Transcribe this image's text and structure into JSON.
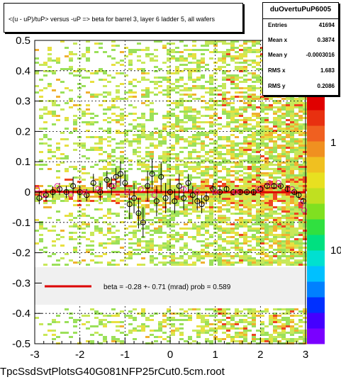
{
  "title": "<(u - uP)/tuP> versus  -uP => beta for barrel 3, layer 6 ladder 5, all wafers",
  "footer": "TpcSsdSvtPlotsG40G081NFP25rCut0.5cm.root",
  "stats": {
    "name": "duOvertuPuP6005",
    "rows": [
      {
        "label": "Entries",
        "value": "41694"
      },
      {
        "label": "Mean x",
        "value": "0.3874"
      },
      {
        "label": "Mean y",
        "value": "-0.0003016"
      },
      {
        "label": "RMS x",
        "value": "1.683"
      },
      {
        "label": "RMS y",
        "value": "0.2086"
      }
    ]
  },
  "chart_data": {
    "type": "heatmap",
    "xlim": [
      -3,
      3
    ],
    "ylim": [
      -0.5,
      0.5
    ],
    "x_ticks": [
      "-3",
      "-2",
      "-1",
      "0",
      "1",
      "2",
      "3"
    ],
    "y_ticks": [
      "-0.5",
      "-0.4",
      "-0.3",
      "-0.2",
      "-0.1",
      "0",
      "0.1",
      "0.2",
      "0.3",
      "0.4",
      "0.5"
    ],
    "z_ticks": [
      "1",
      "10"
    ],
    "legend": {
      "text": "beta =   -0.28 +-  0.71 (mrad) prob = 0.589",
      "line_color": "#dd0000"
    },
    "fit_line": {
      "slope": -0.00028,
      "intercept": 0.0,
      "color": "#dd0000"
    },
    "profile_black": [
      {
        "x": -2.9,
        "y": -0.02,
        "e": 0.02
      },
      {
        "x": -2.75,
        "y": -0.01,
        "e": 0.02
      },
      {
        "x": -2.6,
        "y": 0.0,
        "e": 0.02
      },
      {
        "x": -2.45,
        "y": 0.01,
        "e": 0.02
      },
      {
        "x": -2.3,
        "y": 0.0,
        "e": 0.02
      },
      {
        "x": -2.15,
        "y": 0.02,
        "e": 0.03
      },
      {
        "x": -2.0,
        "y": 0.0,
        "e": 0.02
      },
      {
        "x": -1.85,
        "y": -0.01,
        "e": 0.02
      },
      {
        "x": -1.7,
        "y": 0.03,
        "e": 0.03
      },
      {
        "x": -1.55,
        "y": 0.0,
        "e": 0.03
      },
      {
        "x": -1.4,
        "y": 0.04,
        "e": 0.03
      },
      {
        "x": -1.3,
        "y": 0.02,
        "e": 0.03
      },
      {
        "x": -1.2,
        "y": 0.05,
        "e": 0.03
      },
      {
        "x": -1.1,
        "y": 0.06,
        "e": 0.04
      },
      {
        "x": -1.0,
        "y": 0.03,
        "e": 0.04
      },
      {
        "x": -0.9,
        "y": -0.04,
        "e": 0.05
      },
      {
        "x": -0.8,
        "y": -0.02,
        "e": 0.05
      },
      {
        "x": -0.7,
        "y": -0.07,
        "e": 0.05
      },
      {
        "x": -0.6,
        "y": -0.1,
        "e": 0.05
      },
      {
        "x": -0.5,
        "y": 0.02,
        "e": 0.05
      },
      {
        "x": -0.4,
        "y": 0.06,
        "e": 0.05
      },
      {
        "x": -0.3,
        "y": -0.03,
        "e": 0.05
      },
      {
        "x": -0.2,
        "y": 0.05,
        "e": 0.05
      },
      {
        "x": -0.1,
        "y": -0.02,
        "e": 0.05
      },
      {
        "x": 0.0,
        "y": 0.0,
        "e": 0.04
      },
      {
        "x": 0.1,
        "y": -0.03,
        "e": 0.04
      },
      {
        "x": 0.2,
        "y": 0.02,
        "e": 0.04
      },
      {
        "x": 0.3,
        "y": -0.02,
        "e": 0.04
      },
      {
        "x": 0.4,
        "y": 0.03,
        "e": 0.03
      },
      {
        "x": 0.5,
        "y": -0.01,
        "e": 0.03
      },
      {
        "x": 0.6,
        "y": -0.03,
        "e": 0.03
      },
      {
        "x": 0.7,
        "y": -0.04,
        "e": 0.03
      },
      {
        "x": 0.8,
        "y": -0.02,
        "e": 0.02
      },
      {
        "x": 0.95,
        "y": 0.01,
        "e": 0.02
      },
      {
        "x": 1.1,
        "y": 0.0,
        "e": 0.02
      },
      {
        "x": 1.25,
        "y": 0.01,
        "e": 0.01
      },
      {
        "x": 1.4,
        "y": 0.0,
        "e": 0.01
      },
      {
        "x": 1.55,
        "y": 0.0,
        "e": 0.01
      },
      {
        "x": 1.7,
        "y": 0.0,
        "e": 0.01
      },
      {
        "x": 1.85,
        "y": 0.0,
        "e": 0.01
      },
      {
        "x": 2.0,
        "y": 0.01,
        "e": 0.01
      },
      {
        "x": 2.15,
        "y": 0.02,
        "e": 0.01
      },
      {
        "x": 2.3,
        "y": 0.02,
        "e": 0.01
      },
      {
        "x": 2.45,
        "y": 0.02,
        "e": 0.01
      },
      {
        "x": 2.6,
        "y": 0.01,
        "e": 0.01
      },
      {
        "x": 2.75,
        "y": 0.0,
        "e": 0.01
      },
      {
        "x": 2.85,
        "y": -0.01,
        "e": 0.01
      },
      {
        "x": 2.95,
        "y": -0.03,
        "e": 0.01
      }
    ],
    "profile_magenta": [
      {
        "x": -2.95,
        "y": 0.01
      },
      {
        "x": -2.8,
        "y": -0.01
      },
      {
        "x": -2.5,
        "y": 0.02
      },
      {
        "x": -2.2,
        "y": -0.01
      },
      {
        "x": -1.9,
        "y": 0.0
      },
      {
        "x": -1.6,
        "y": 0.01
      },
      {
        "x": -1.25,
        "y": 0.02
      },
      {
        "x": -0.95,
        "y": 0.0
      },
      {
        "x": -0.65,
        "y": 0.01
      },
      {
        "x": -0.35,
        "y": -0.01
      },
      {
        "x": 0.3,
        "y": 0.01
      },
      {
        "x": 0.6,
        "y": 0.0
      },
      {
        "x": 1.0,
        "y": 0.0
      },
      {
        "x": 1.45,
        "y": 0.0
      },
      {
        "x": 1.95,
        "y": 0.01
      },
      {
        "x": 2.2,
        "y": 0.03
      },
      {
        "x": 2.4,
        "y": 0.03
      },
      {
        "x": 2.7,
        "y": 0.01
      },
      {
        "x": 2.9,
        "y": -0.04
      },
      {
        "x": 2.97,
        "y": -0.06
      }
    ]
  }
}
